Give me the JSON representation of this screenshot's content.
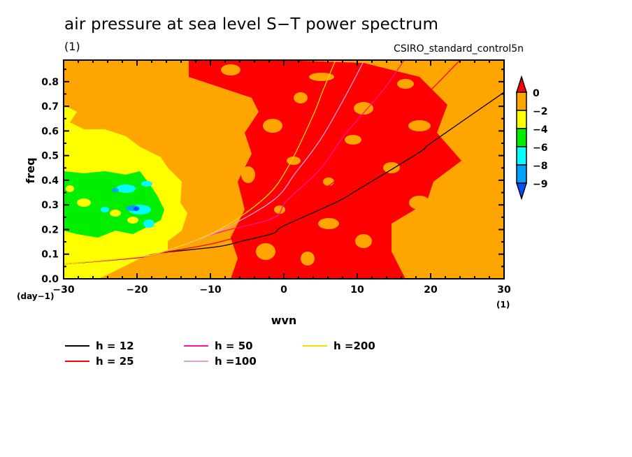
{
  "chart_data": {
    "type": "heatmap",
    "title": "air pressure at sea level S−T power spectrum",
    "subtitle_left": "(1)",
    "subtitle_right": "CSIRO_standard_control5n",
    "xlabel": "wvn",
    "ylabel": "freq",
    "x_units": "(1)",
    "y_units": "(day−1)",
    "xlim": [
      -30,
      30
    ],
    "ylim": [
      0,
      0.8875
    ],
    "x_ticks": [
      -30,
      -20,
      -10,
      0,
      10,
      20,
      30
    ],
    "x_tick_labels": [
      "−30",
      "−20",
      "−10",
      "0",
      "10",
      "20",
      "30"
    ],
    "y_ticks": [
      0.0,
      0.1,
      0.2,
      0.3,
      0.4,
      0.5,
      0.6,
      0.7,
      0.8
    ],
    "y_tick_labels": [
      "0.0",
      "0.1",
      "0.2",
      "0.3",
      "0.4",
      "0.5",
      "0.6",
      "0.7",
      "0.8"
    ],
    "colorbar": {
      "levels": [
        "0",
        "−2",
        "−4",
        "−6",
        "−8",
        "−9"
      ],
      "colors": [
        "#ff0000",
        "#ffa500",
        "#ffff00",
        "#00ee00",
        "#00ffff",
        "#00a0ff",
        "#0050ff"
      ]
    },
    "field_description_colors": {
      "background": "#ffa500",
      "high": "#ff0000",
      "low1": "#ffff00",
      "low2": "#00ee00",
      "low3": "#00ffff",
      "low4": "#00a0ff",
      "low5": "#0050ff"
    },
    "series": [
      {
        "name": "h = 12",
        "color": "#000000",
        "x": [
          -30,
          -20,
          -16.8,
          -9.1,
          -5.7,
          -1.5,
          0,
          7,
          10,
          18.6,
          20,
          30
        ],
        "y": [
          0.06,
          0.085,
          0.105,
          0.13,
          0.153,
          0.184,
          0.215,
          0.309,
          0.36,
          0.516,
          0.55,
          0.757
        ]
      },
      {
        "name": "h = 25",
        "color": "#ff0000",
        "x": [
          -30,
          -20,
          -16.8,
          -9.1,
          -1.5,
          2.29,
          4.19,
          10,
          19.33,
          24.0
        ],
        "y": [
          0.06,
          0.086,
          0.105,
          0.147,
          0.218,
          0.3,
          0.337,
          0.47,
          0.745,
          0.8875
        ]
      },
      {
        "name": "h = 50",
        "color": "#ff1493",
        "x": [
          -30,
          -20,
          -16.8,
          -9.1,
          -1.5,
          0.38,
          4.86,
          8.29,
          13.43,
          16.38
        ],
        "y": [
          0.06,
          0.087,
          0.105,
          0.186,
          0.246,
          0.317,
          0.442,
          0.584,
          0.762,
          0.8875
        ]
      },
      {
        "name": "h =100",
        "color": "#dda0dd",
        "x": [
          -30,
          -20,
          -16.8,
          -9.1,
          -1.52,
          1.62,
          5.14,
          8.76,
          10.95
        ],
        "y": [
          0.06,
          0.088,
          0.106,
          0.19,
          0.317,
          0.431,
          0.572,
          0.762,
          0.8875
        ]
      },
      {
        "name": "h =200",
        "color": "#ffd700",
        "x": [
          -30,
          -20,
          -16.8,
          -9.1,
          -2.5,
          0.67,
          3.9,
          5.3,
          7.05
        ],
        "y": [
          0.06,
          0.089,
          0.107,
          0.195,
          0.331,
          0.459,
          0.657,
          0.762,
          0.8875
        ]
      }
    ],
    "legend_placement": "bottom"
  }
}
